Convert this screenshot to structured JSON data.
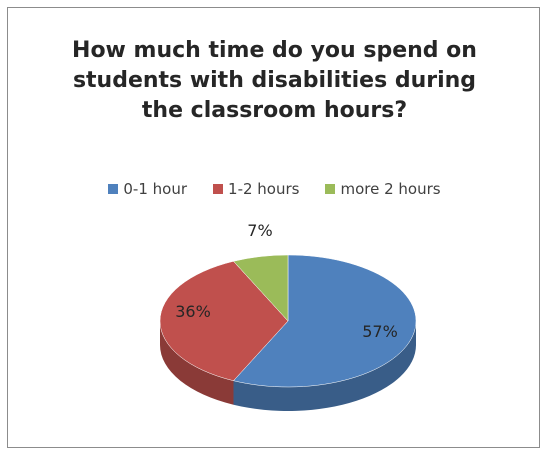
{
  "chart_data": {
    "type": "pie",
    "title": "How much time do you spend on\nstudents with disabilities during\nthe classroom hours?",
    "legend_position": "top",
    "series": [
      {
        "name": "0-1 hour",
        "value": 57,
        "label": "57%",
        "color": "#4f81bd"
      },
      {
        "name": "1-2 hours",
        "value": 36,
        "label": "36%",
        "color": "#c0504d"
      },
      {
        "name": "more 2 hours",
        "value": 7,
        "label": "7%",
        "color": "#9bbb59"
      }
    ]
  }
}
